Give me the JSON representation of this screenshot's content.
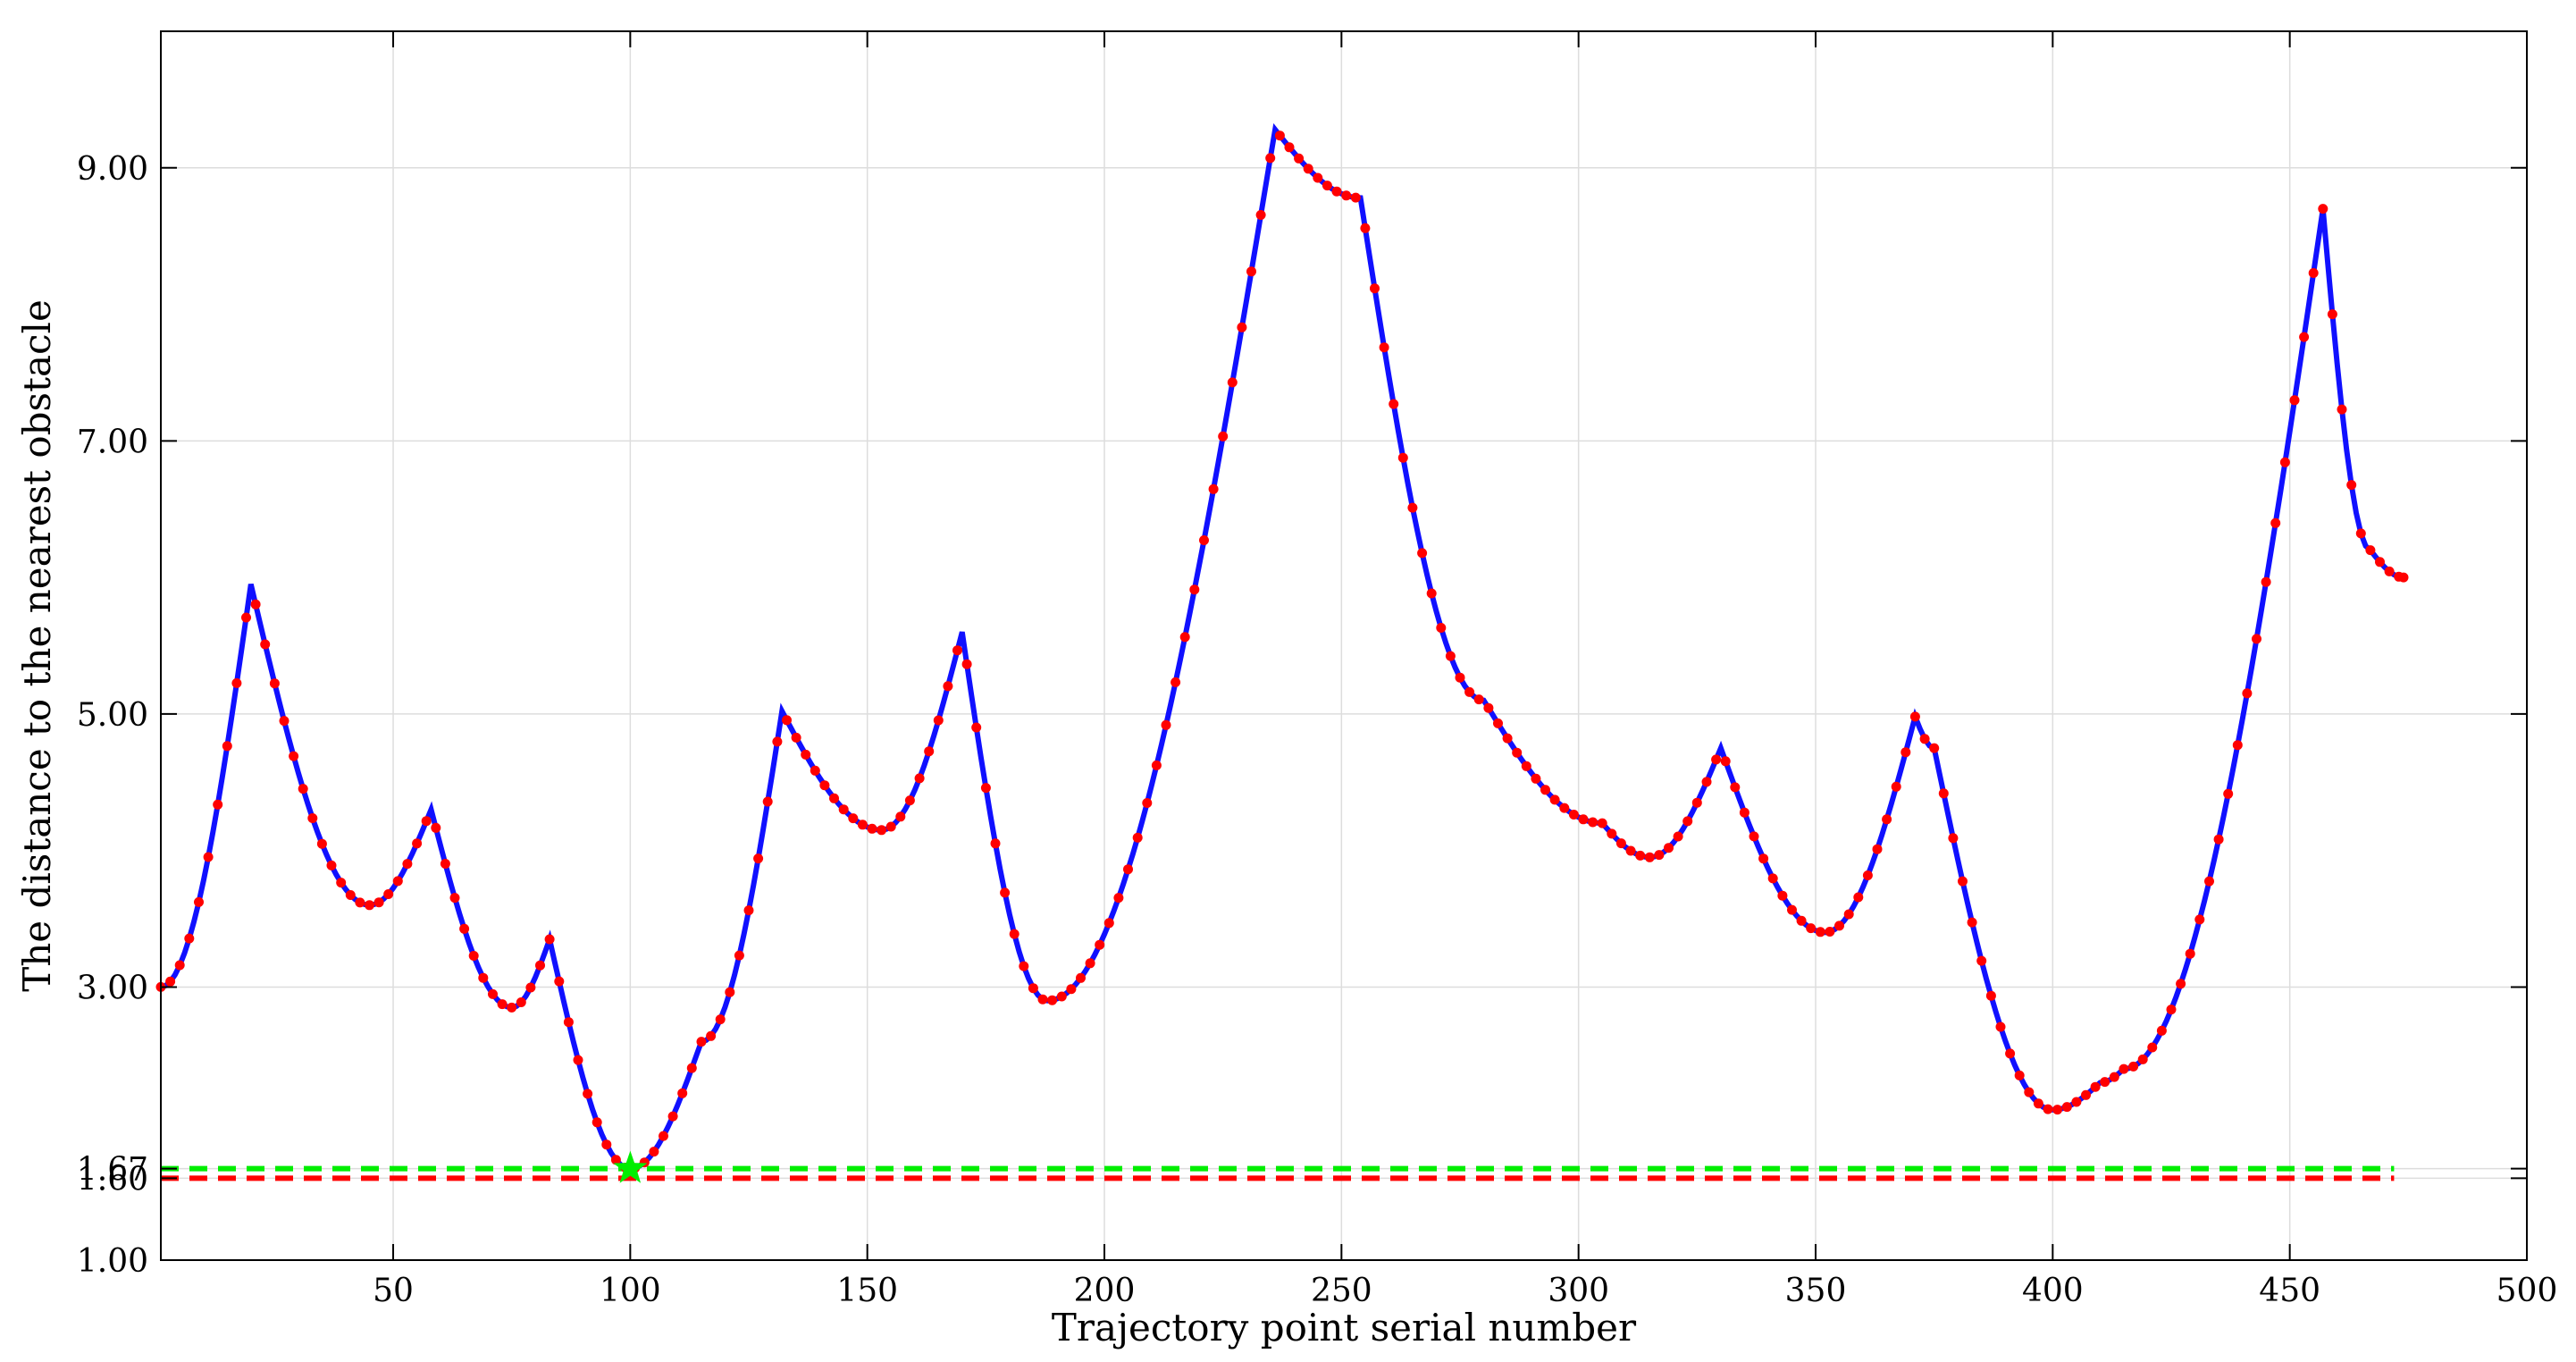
{
  "chart_data": {
    "type": "line",
    "xlabel": "Trajectory point serial number",
    "ylabel": "The distance to the nearest obstacle",
    "xlim": [
      1,
      500
    ],
    "ylim": [
      1,
      10
    ],
    "xticks": [
      50,
      100,
      150,
      200,
      250,
      300,
      350,
      400,
      450,
      500
    ],
    "yticks": [
      1.0,
      1.6,
      1.67,
      3.0,
      5.0,
      7.0,
      9.0
    ],
    "ytick_labels": [
      "1.00",
      "1.60",
      "1.67",
      "3.00",
      "5.00",
      "7.00",
      "9.00"
    ],
    "grid": true,
    "series": [
      {
        "style": "blue-line-with-red-dot-markers",
        "line_color": "#1010ff",
        "marker_color": "#ff0000",
        "x": [
          1,
          20,
          45,
          58,
          75,
          83,
          100,
          115,
          132,
          153,
          170,
          188,
          236,
          254,
          280,
          305,
          315,
          330,
          352,
          371,
          375,
          400,
          410,
          415,
          457,
          467,
          474
        ],
        "y": [
          3.0,
          5.95,
          3.6,
          4.3,
          2.85,
          3.35,
          1.67,
          2.6,
          5.02,
          4.15,
          5.6,
          2.9,
          9.28,
          8.78,
          5.1,
          4.2,
          3.95,
          4.75,
          3.4,
          4.98,
          4.75,
          2.1,
          2.3,
          2.4,
          8.7,
          6.2,
          6.0
        ]
      }
    ],
    "thresholds": [
      {
        "value": 1.67,
        "color": "#00ee00",
        "style": "dashed"
      },
      {
        "value": 1.6,
        "color": "#ff0000",
        "style": "dashed"
      }
    ],
    "marker": {
      "x": 100,
      "y": 1.67,
      "shape": "star",
      "color": "#00ee00"
    }
  }
}
